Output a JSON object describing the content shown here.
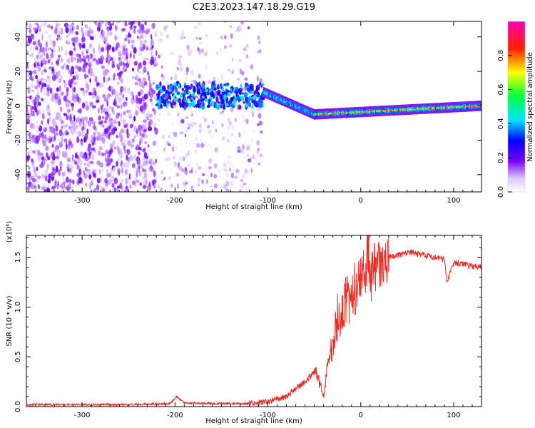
{
  "title": "C2E3.2023.147.18.29.G19",
  "chart_data": [
    {
      "type": "heatmap",
      "xlabel": "Height of straight line (km)",
      "ylabel": "Frequency (Hz)",
      "xlim": [
        -360,
        130
      ],
      "ylim": [
        -50,
        49
      ],
      "xticks": [
        -300,
        -200,
        -100,
        0,
        100
      ],
      "yticks": [
        -40,
        -20,
        0,
        20,
        40
      ],
      "colorbar": {
        "label": "Normalized spectral amplitude",
        "range": [
          0,
          1
        ],
        "ticks": [
          "0.0",
          "0.2",
          "0.4",
          "0.6",
          "0.8"
        ],
        "colors": [
          "#ffffff",
          "#6f00ff",
          "#0000ff",
          "#00ffff",
          "#00ff00",
          "#ffff00",
          "#ff0000",
          "#ff00aa"
        ]
      },
      "regions": [
        {
          "x": [
            -360,
            -220
          ],
          "type": "noise",
          "amplitude": 0.15
        },
        {
          "x": [
            -220,
            -105
          ],
          "type": "band",
          "freq_center": 6,
          "freq_width": 14,
          "amplitude": 0.35
        },
        {
          "x": [
            -105,
            -50
          ],
          "type": "line",
          "freq_start": 8,
          "freq_end": -5,
          "amplitude": 0.45
        },
        {
          "x": [
            -50,
            130
          ],
          "type": "line",
          "freq_start": -5,
          "freq_end": 0,
          "amplitude": 0.75
        }
      ]
    },
    {
      "type": "line",
      "xlabel": "Height of straight line (km)",
      "ylabel": "SNR (10 * v/v)",
      "y_multiplier": "(x10⁴)",
      "xlim": [
        -360,
        130
      ],
      "ylim": [
        0,
        1.72
      ],
      "xticks": [
        -300,
        -200,
        -100,
        0,
        100
      ],
      "yticks": [
        0.0,
        0.5,
        1.0,
        1.5
      ],
      "ytick_labels": [
        "0.0",
        "0.5",
        "1.0",
        "1.5"
      ],
      "color": "#e8302a",
      "series": [
        {
          "x": [
            -360,
            -300,
            -250,
            -205,
            -198,
            -190,
            -160,
            -120,
            -100,
            -80,
            -70,
            -60,
            -50,
            -45,
            -40,
            -35,
            -30,
            -25,
            -20,
            -15,
            -10,
            -5,
            0,
            5,
            8,
            10,
            15,
            20,
            30,
            40,
            50,
            60,
            70,
            80,
            90,
            93,
            100,
            110,
            120,
            130
          ],
          "y": [
            0.02,
            0.02,
            0.02,
            0.03,
            0.1,
            0.04,
            0.03,
            0.03,
            0.05,
            0.1,
            0.18,
            0.25,
            0.35,
            0.25,
            0.1,
            0.45,
            0.6,
            0.9,
            0.95,
            1.05,
            1.12,
            1.2,
            1.3,
            1.35,
            1.65,
            1.3,
            1.4,
            1.45,
            1.5,
            1.52,
            1.55,
            1.54,
            1.52,
            1.5,
            1.48,
            1.25,
            1.45,
            1.43,
            1.41,
            1.4
          ]
        }
      ]
    }
  ]
}
